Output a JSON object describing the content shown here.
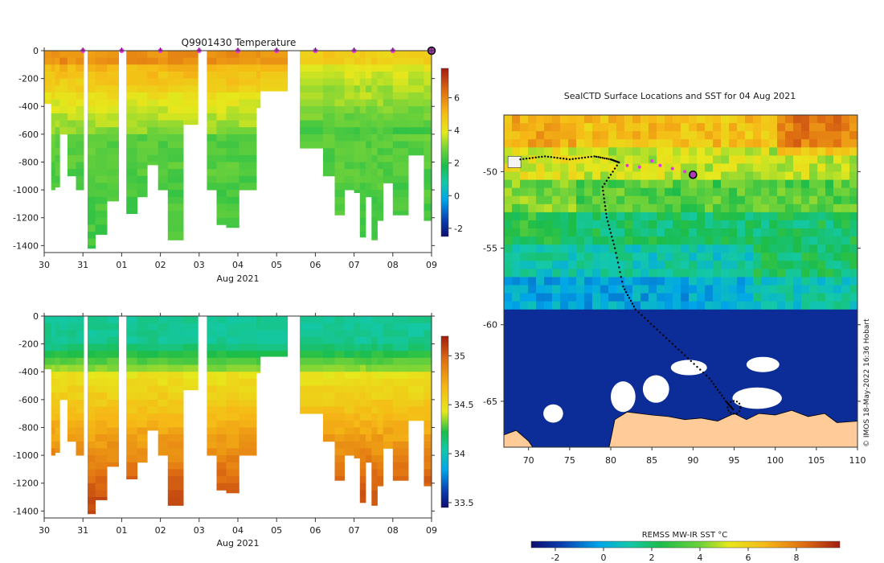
{
  "profile_charts": [
    {
      "type": "heatmap",
      "title": "Q9901430  Temperature",
      "variable": "temperature",
      "xlabel": "Aug 2021",
      "ylabel": "",
      "x_tick_labels": [
        "30",
        "31",
        "01",
        "02",
        "03",
        "04",
        "05",
        "06",
        "07",
        "08",
        "09"
      ],
      "x_range_days": [
        0,
        10
      ],
      "y_ticks": [
        0,
        -200,
        -400,
        -600,
        -800,
        -1000,
        -1200,
        -1400
      ],
      "ylim": [
        -1450,
        0
      ],
      "colorbar": {
        "ticks": [
          -2,
          0,
          2,
          4,
          6
        ],
        "range": [
          -2.5,
          7.8
        ]
      },
      "surface_markers_days": [
        1,
        2,
        3,
        4,
        5,
        6,
        7,
        8,
        9,
        10
      ],
      "current_position_day": 10,
      "profiles": [
        {
          "t": 0.0,
          "w": 0.18,
          "d": 380
        },
        {
          "t": 0.18,
          "w": 0.1,
          "d": 1000
        },
        {
          "t": 0.28,
          "w": 0.12,
          "d": 980
        },
        {
          "t": 0.4,
          "w": 0.2,
          "d": 600
        },
        {
          "t": 0.6,
          "w": 0.22,
          "d": 900
        },
        {
          "t": 0.82,
          "w": 0.2,
          "d": 1000
        },
        {
          "t": 1.12,
          "w": 0.2,
          "d": 1420
        },
        {
          "t": 1.32,
          "w": 0.3,
          "d": 1320
        },
        {
          "t": 1.62,
          "w": 0.3,
          "d": 1080
        },
        {
          "t": 2.12,
          "w": 0.28,
          "d": 1170
        },
        {
          "t": 2.4,
          "w": 0.26,
          "d": 1050
        },
        {
          "t": 2.66,
          "w": 0.28,
          "d": 820
        },
        {
          "t": 2.94,
          "w": 0.25,
          "d": 1000
        },
        {
          "t": 3.19,
          "w": 0.4,
          "d": 1360
        },
        {
          "t": 3.59,
          "w": 0.38,
          "d": 530
        },
        {
          "t": 4.2,
          "w": 0.25,
          "d": 1000
        },
        {
          "t": 4.45,
          "w": 0.25,
          "d": 1250
        },
        {
          "t": 4.7,
          "w": 0.33,
          "d": 1270
        },
        {
          "t": 5.03,
          "w": 0.45,
          "d": 1000
        },
        {
          "t": 5.48,
          "w": 0.1,
          "d": 410
        },
        {
          "t": 5.58,
          "w": 0.7,
          "d": 290
        },
        {
          "t": 6.6,
          "w": 0.6,
          "d": 700
        },
        {
          "t": 7.2,
          "w": 0.3,
          "d": 900
        },
        {
          "t": 7.5,
          "w": 0.25,
          "d": 1180
        },
        {
          "t": 7.75,
          "w": 0.25,
          "d": 1000
        },
        {
          "t": 8.0,
          "w": 0.15,
          "d": 1020
        },
        {
          "t": 8.15,
          "w": 0.15,
          "d": 1340
        },
        {
          "t": 8.3,
          "w": 0.15,
          "d": 1050
        },
        {
          "t": 8.45,
          "w": 0.15,
          "d": 1360
        },
        {
          "t": 8.6,
          "w": 0.15,
          "d": 1220
        },
        {
          "t": 8.75,
          "w": 0.25,
          "d": 950
        },
        {
          "t": 9.0,
          "w": 0.4,
          "d": 1180
        },
        {
          "t": 9.4,
          "w": 0.4,
          "d": 750
        },
        {
          "t": 9.8,
          "w": 0.18,
          "d": 1220
        },
        {
          "t": 9.98,
          "w": 0.12,
          "d": 700
        }
      ]
    },
    {
      "type": "heatmap",
      "title": "",
      "variable": "salinity",
      "xlabel": "Aug 2021",
      "ylabel": "",
      "x_tick_labels": [
        "30",
        "31",
        "01",
        "02",
        "03",
        "04",
        "05",
        "06",
        "07",
        "08",
        "09"
      ],
      "x_range_days": [
        0,
        10
      ],
      "y_ticks": [
        0,
        -200,
        -400,
        -600,
        -800,
        -1000,
        -1200,
        -1400
      ],
      "ylim": [
        -1450,
        0
      ],
      "colorbar": {
        "ticks": [
          33.5,
          34,
          34.5,
          35
        ],
        "range": [
          33.45,
          35.2
        ]
      },
      "profiles": [
        {
          "t": 0.0,
          "w": 0.18,
          "d": 380
        },
        {
          "t": 0.18,
          "w": 0.1,
          "d": 1000
        },
        {
          "t": 0.28,
          "w": 0.12,
          "d": 980
        },
        {
          "t": 0.4,
          "w": 0.2,
          "d": 600
        },
        {
          "t": 0.6,
          "w": 0.22,
          "d": 900
        },
        {
          "t": 0.82,
          "w": 0.2,
          "d": 1000
        },
        {
          "t": 1.12,
          "w": 0.2,
          "d": 1420
        },
        {
          "t": 1.32,
          "w": 0.3,
          "d": 1320
        },
        {
          "t": 1.62,
          "w": 0.3,
          "d": 1080
        },
        {
          "t": 2.12,
          "w": 0.28,
          "d": 1170
        },
        {
          "t": 2.4,
          "w": 0.26,
          "d": 1050
        },
        {
          "t": 2.66,
          "w": 0.28,
          "d": 820
        },
        {
          "t": 2.94,
          "w": 0.25,
          "d": 1000
        },
        {
          "t": 3.19,
          "w": 0.4,
          "d": 1360
        },
        {
          "t": 3.59,
          "w": 0.38,
          "d": 530
        },
        {
          "t": 4.2,
          "w": 0.25,
          "d": 1000
        },
        {
          "t": 4.45,
          "w": 0.25,
          "d": 1250
        },
        {
          "t": 4.7,
          "w": 0.33,
          "d": 1270
        },
        {
          "t": 5.03,
          "w": 0.45,
          "d": 1000
        },
        {
          "t": 5.48,
          "w": 0.1,
          "d": 410
        },
        {
          "t": 5.58,
          "w": 0.7,
          "d": 290
        },
        {
          "t": 6.6,
          "w": 0.6,
          "d": 700
        },
        {
          "t": 7.2,
          "w": 0.3,
          "d": 900
        },
        {
          "t": 7.5,
          "w": 0.25,
          "d": 1180
        },
        {
          "t": 7.75,
          "w": 0.25,
          "d": 1000
        },
        {
          "t": 8.0,
          "w": 0.15,
          "d": 1020
        },
        {
          "t": 8.15,
          "w": 0.15,
          "d": 1340
        },
        {
          "t": 8.3,
          "w": 0.15,
          "d": 1050
        },
        {
          "t": 8.45,
          "w": 0.15,
          "d": 1360
        },
        {
          "t": 8.6,
          "w": 0.15,
          "d": 1220
        },
        {
          "t": 8.75,
          "w": 0.25,
          "d": 950
        },
        {
          "t": 9.0,
          "w": 0.4,
          "d": 1180
        },
        {
          "t": 9.4,
          "w": 0.4,
          "d": 750
        },
        {
          "t": 9.8,
          "w": 0.18,
          "d": 1220
        },
        {
          "t": 9.98,
          "w": 0.12,
          "d": 700
        }
      ]
    }
  ],
  "map": {
    "title": "SealCTD Surface Locations and SST for 04 Aug 2021",
    "x_ticks": [
      70,
      75,
      80,
      85,
      90,
      95,
      100,
      105,
      110
    ],
    "y_ticks": [
      -50,
      -55,
      -60,
      -65
    ],
    "xlim": [
      67,
      110
    ],
    "ylim": [
      -68,
      -46.3
    ],
    "colorbar_label": "REMSS MW-IR SST °C",
    "colorbar_ticks": [
      -2,
      0,
      2,
      4,
      6,
      8
    ],
    "colorbar_range": [
      -3,
      9.8
    ],
    "credit": "© IMOS 18-May-2022 16:36 Hobart",
    "recent_track_lonlat": [
      [
        82,
        -49.6
      ],
      [
        83.5,
        -49.7
      ],
      [
        85,
        -49.3
      ],
      [
        86,
        -49.6
      ],
      [
        87.5,
        -49.8
      ],
      [
        89,
        -50
      ]
    ],
    "current_position_lonlat": [
      90,
      -50.2
    ],
    "land_fill_lonlat": [
      [
        79.8,
        -68
      ],
      [
        80.5,
        -66.2
      ],
      [
        82,
        -65.7
      ],
      [
        85,
        -65.9
      ],
      [
        87,
        -66
      ],
      [
        89,
        -66.2
      ],
      [
        91,
        -66.1
      ],
      [
        93,
        -66.3
      ],
      [
        95,
        -65.8
      ],
      [
        96.5,
        -66.2
      ],
      [
        98,
        -65.8
      ],
      [
        100,
        -65.9
      ],
      [
        102,
        -65.6
      ],
      [
        104,
        -66
      ],
      [
        106,
        -65.8
      ],
      [
        107.5,
        -66.4
      ],
      [
        110,
        -66.3
      ],
      [
        110,
        -68
      ]
    ],
    "land_fill_west_lonlat": [
      [
        67,
        -67.2
      ],
      [
        68.5,
        -66.9
      ],
      [
        70,
        -67.6
      ],
      [
        70.5,
        -68
      ],
      [
        67,
        -68
      ]
    ],
    "sea_ice_edge_lat": -59,
    "ice_patches_lonlat": [
      [
        97.8,
        -64.8,
        3,
        0.7
      ],
      [
        89.5,
        -62.8,
        2.2,
        0.5
      ],
      [
        98.5,
        -62.6,
        2,
        0.5
      ],
      [
        85.5,
        -64.2,
        1.6,
        0.9
      ],
      [
        81.5,
        -64.7,
        1.5,
        1
      ],
      [
        73,
        -65.8,
        1.2,
        0.6
      ]
    ],
    "sst_bands": [
      {
        "lat": -46.3,
        "lat2": -48.5,
        "sst": 6.2
      },
      {
        "lat": -48.5,
        "lat2": -50.5,
        "sst": 4.5
      },
      {
        "lat": -50.5,
        "lat2": -52.5,
        "sst": 3.2
      },
      {
        "lat": -52.5,
        "lat2": -55,
        "sst": 2.0
      },
      {
        "lat": -55,
        "lat2": -57,
        "sst": 1.0
      },
      {
        "lat": -57,
        "lat2": -59,
        "sst": 0.0
      }
    ]
  }
}
